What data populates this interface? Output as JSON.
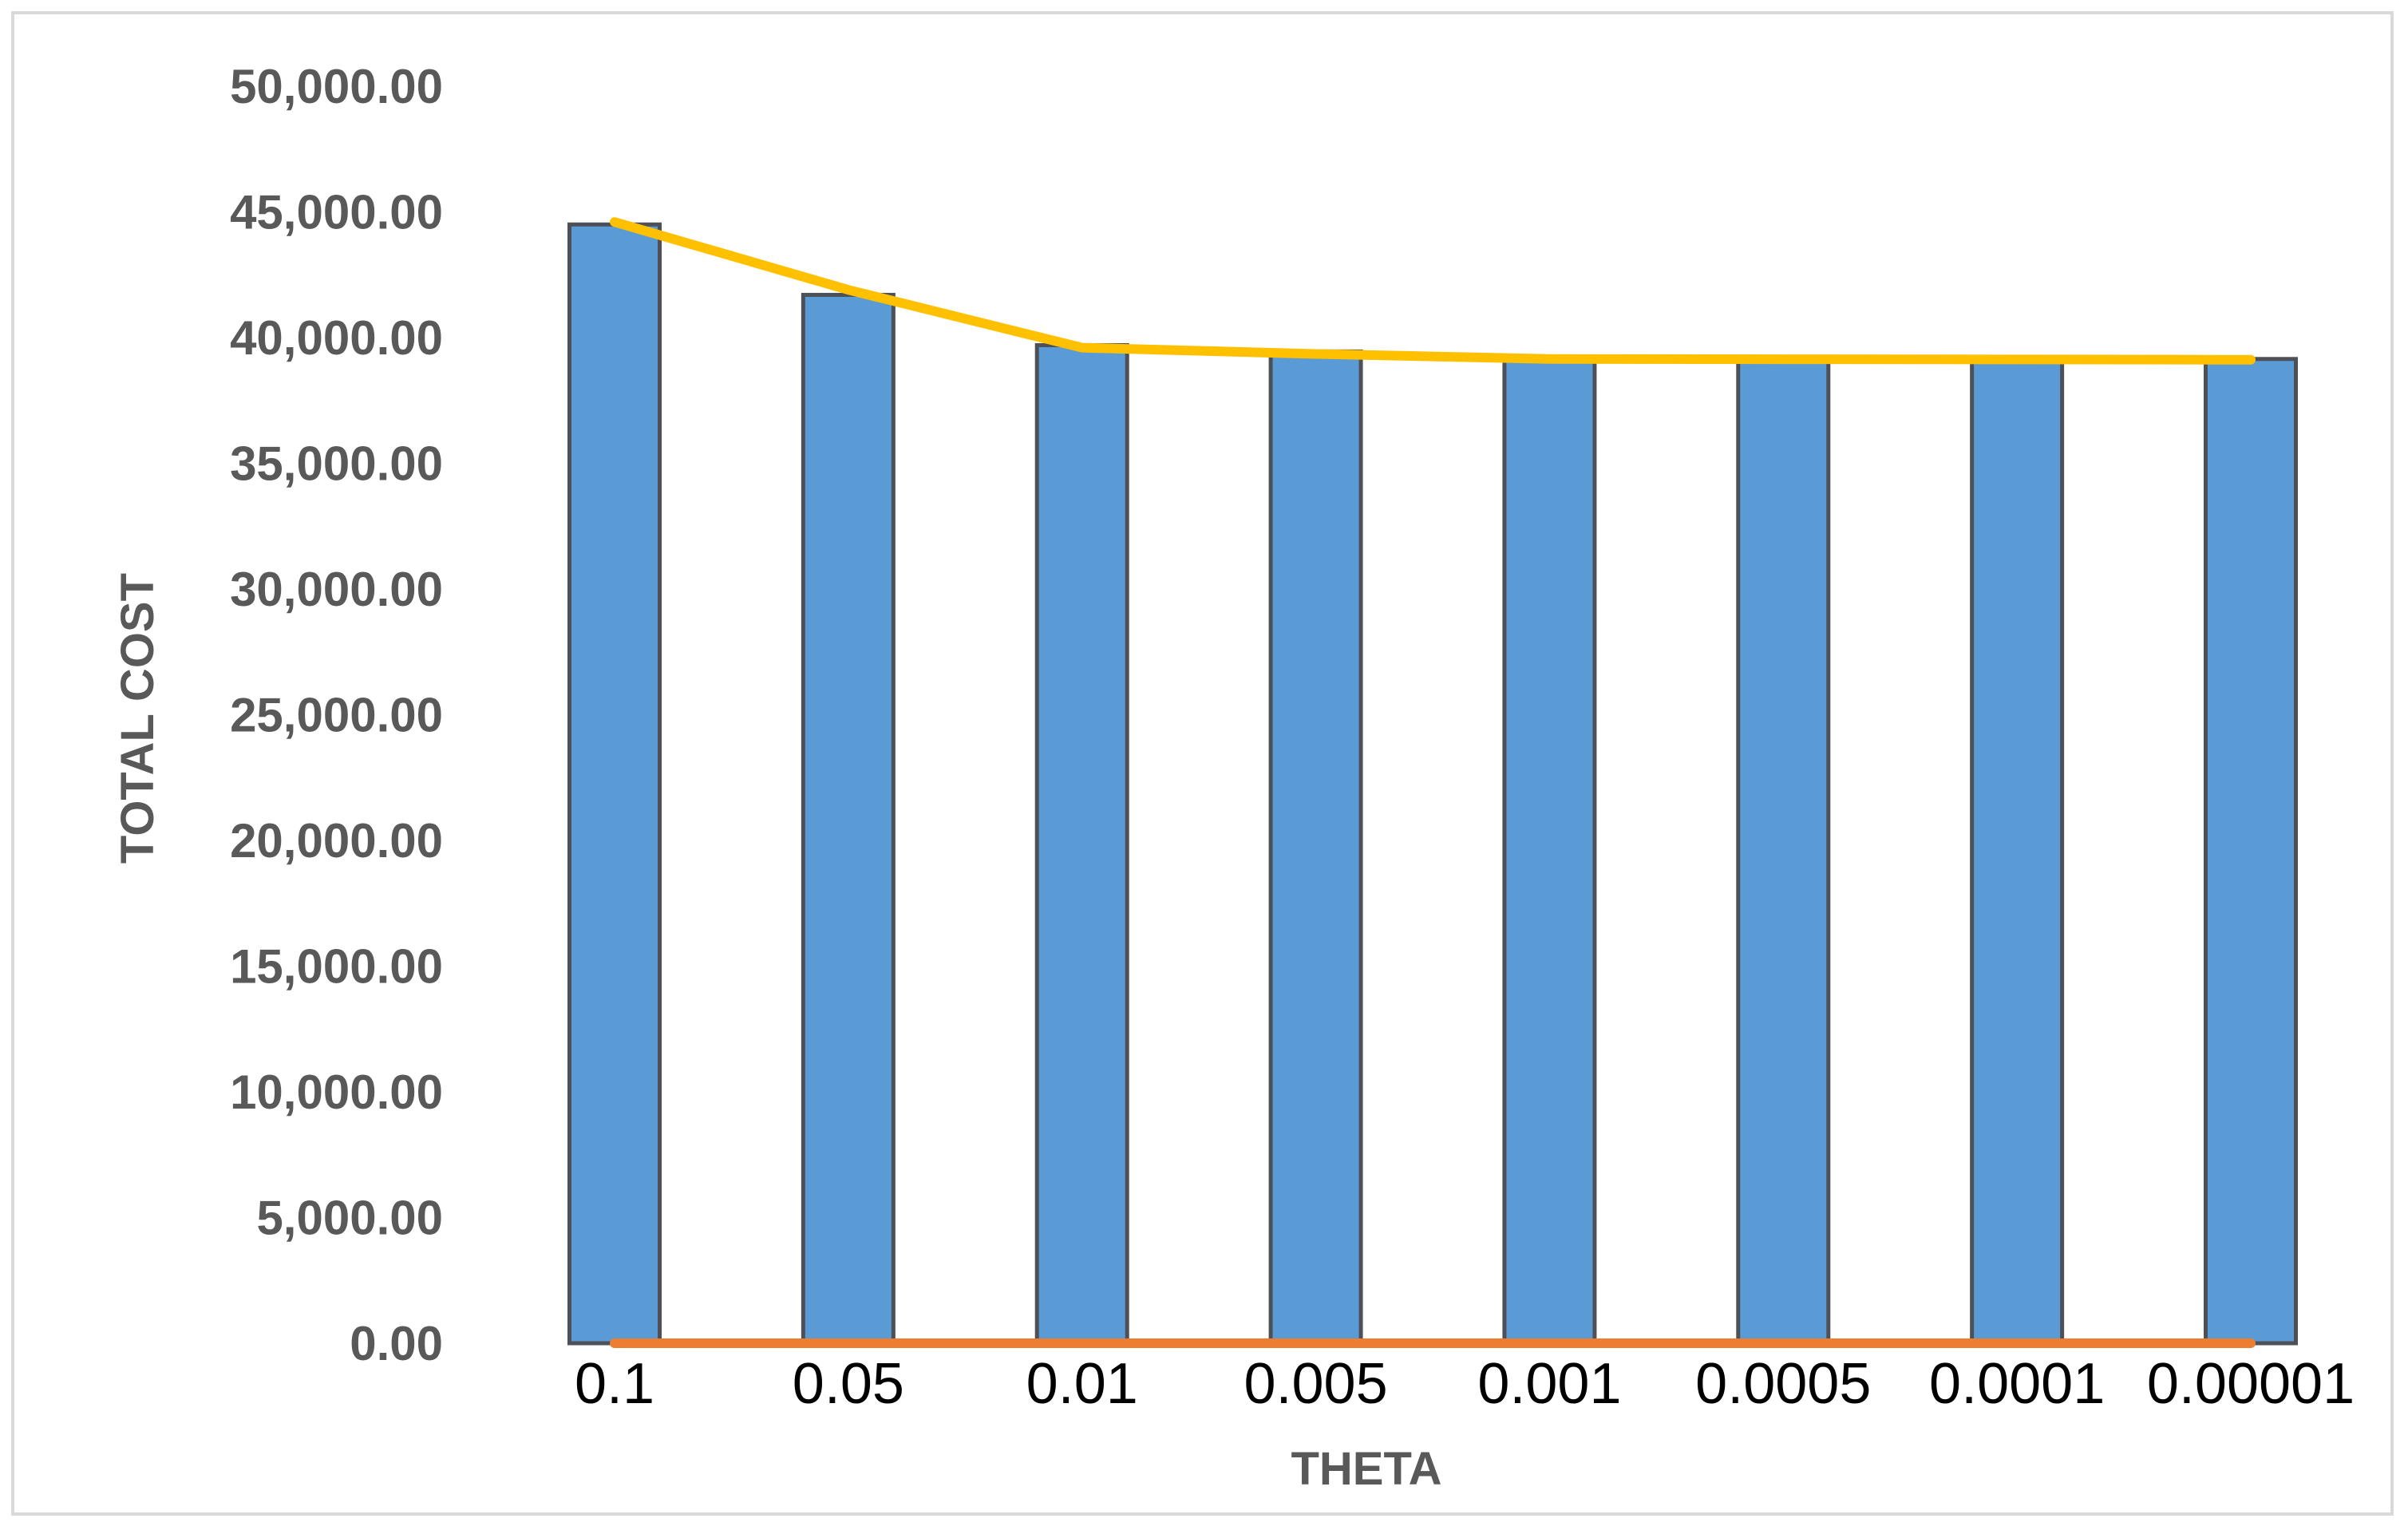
{
  "chart_data": {
    "type": "bar",
    "title": "",
    "xlabel": "THETA",
    "ylabel": "TOTAL COST",
    "categories": [
      "0.1",
      "0.05",
      "0.01",
      "0.005",
      "0.001",
      "0.0005",
      "0.0001",
      "0.00001"
    ],
    "ylim": [
      0,
      50000
    ],
    "yticks": [
      "0.00",
      "5,000.00",
      "10,000.00",
      "15,000.00",
      "20,000.00",
      "25,000.00",
      "30,000.00",
      "35,000.00",
      "40,000.00",
      "45,000.00",
      "50,000.00"
    ],
    "grid": false,
    "legend": "none",
    "series": [
      {
        "kind": "bar",
        "color": "#5b9bd5",
        "edge_color": "#4d5057",
        "values": [
          44500,
          41700,
          39700,
          39450,
          39250,
          39220,
          39180,
          39150
        ]
      },
      {
        "kind": "line",
        "color": "#ffc000",
        "values": [
          44600,
          41900,
          39600,
          39350,
          39150,
          39140,
          39130,
          39120
        ]
      },
      {
        "kind": "line",
        "color": "#ed7d31",
        "values": [
          0,
          0,
          0,
          0,
          0,
          0,
          0,
          0
        ]
      }
    ]
  }
}
